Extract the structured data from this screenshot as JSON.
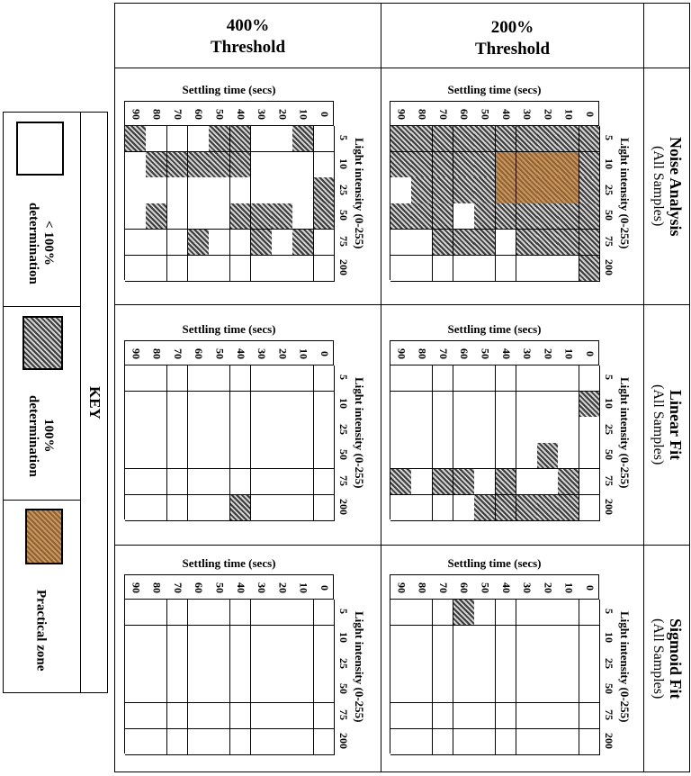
{
  "columns": [
    {
      "line1": "400%",
      "line2": "Threshold"
    },
    {
      "line1": "200%",
      "line2": "Threshold"
    }
  ],
  "rows": [
    {
      "title": "Noise Analysis",
      "subtitle": "(All Samples)"
    },
    {
      "title": "Linear Fit",
      "subtitle": "(All Samples)"
    },
    {
      "title": "Sigmoid Fit",
      "subtitle": "(All Samples)"
    }
  ],
  "axis": {
    "x_title": "Settling time (secs)",
    "y_title": "Light intensity (0-255)",
    "x_ticks": [
      "90",
      "80",
      "70",
      "60",
      "50",
      "40",
      "30",
      "20",
      "10",
      "0"
    ],
    "y_ticks": [
      "5",
      "10",
      "25",
      "50",
      "75",
      "200"
    ]
  },
  "key": {
    "title": "KEY",
    "items": [
      {
        "symbol": "<",
        "label": "100%",
        "label2": "determination",
        "pattern": "blank"
      },
      {
        "symbol": "",
        "label": "100%",
        "label2": "determination",
        "pattern": "hatched"
      },
      {
        "symbol": "",
        "label": "Practical zone",
        "label2": "",
        "pattern": "brown"
      }
    ]
  },
  "chart_data": {
    "type": "heatmap",
    "legend": {
      "0": "< 100% determination",
      "1": "100% determination",
      "2": "Practical zone"
    },
    "x_label": "Settling time (secs)",
    "y_label": "Light intensity (0-255)",
    "x": [
      90,
      80,
      70,
      60,
      50,
      40,
      30,
      20,
      10,
      0
    ],
    "y": [
      5,
      10,
      25,
      50,
      75,
      200
    ],
    "panels": [
      {
        "row": "Noise Analysis",
        "column": "400% Threshold",
        "values": [
          [
            1,
            0,
            0,
            0,
            1,
            1,
            0,
            0,
            1,
            0
          ],
          [
            0,
            1,
            1,
            1,
            1,
            1,
            0,
            0,
            0,
            0
          ],
          [
            0,
            0,
            0,
            0,
            0,
            0,
            0,
            0,
            0,
            1
          ],
          [
            0,
            1,
            0,
            0,
            0,
            1,
            1,
            1,
            0,
            1
          ],
          [
            0,
            0,
            0,
            1,
            0,
            0,
            1,
            0,
            1,
            0
          ],
          [
            0,
            0,
            0,
            0,
            0,
            0,
            0,
            0,
            0,
            0
          ]
        ]
      },
      {
        "row": "Noise Analysis",
        "column": "200% Threshold",
        "values": [
          [
            1,
            1,
            1,
            1,
            1,
            1,
            1,
            1,
            1,
            1
          ],
          [
            1,
            1,
            1,
            1,
            1,
            2,
            2,
            2,
            2,
            1
          ],
          [
            0,
            1,
            1,
            1,
            1,
            2,
            2,
            2,
            2,
            1
          ],
          [
            1,
            1,
            1,
            0,
            1,
            1,
            1,
            1,
            1,
            1
          ],
          [
            0,
            0,
            1,
            1,
            1,
            0,
            1,
            1,
            1,
            1
          ],
          [
            0,
            0,
            0,
            0,
            0,
            0,
            0,
            0,
            0,
            1
          ]
        ]
      },
      {
        "row": "Linear Fit",
        "column": "400% Threshold",
        "values": [
          [
            0,
            0,
            0,
            0,
            0,
            0,
            0,
            0,
            0,
            0
          ],
          [
            0,
            0,
            0,
            0,
            0,
            0,
            0,
            0,
            0,
            0
          ],
          [
            0,
            0,
            0,
            0,
            0,
            0,
            0,
            0,
            0,
            0
          ],
          [
            0,
            0,
            0,
            0,
            0,
            0,
            0,
            0,
            0,
            0
          ],
          [
            0,
            0,
            0,
            0,
            0,
            0,
            0,
            0,
            0,
            0
          ],
          [
            0,
            0,
            0,
            0,
            0,
            1,
            0,
            0,
            0,
            0
          ]
        ]
      },
      {
        "row": "Linear Fit",
        "column": "200% Threshold",
        "values": [
          [
            0,
            0,
            0,
            0,
            0,
            0,
            0,
            0,
            0,
            0
          ],
          [
            0,
            0,
            0,
            0,
            0,
            0,
            0,
            0,
            0,
            1
          ],
          [
            0,
            0,
            0,
            0,
            0,
            0,
            0,
            0,
            0,
            0
          ],
          [
            0,
            0,
            0,
            0,
            0,
            0,
            0,
            1,
            0,
            0
          ],
          [
            1,
            0,
            1,
            1,
            0,
            1,
            0,
            0,
            1,
            0
          ],
          [
            0,
            0,
            0,
            0,
            1,
            1,
            1,
            1,
            1,
            0
          ]
        ]
      },
      {
        "row": "Sigmoid Fit",
        "column": "400% Threshold",
        "values": [
          [
            0,
            0,
            0,
            0,
            0,
            0,
            0,
            0,
            0,
            0
          ],
          [
            0,
            0,
            0,
            0,
            0,
            0,
            0,
            0,
            0,
            0
          ],
          [
            0,
            0,
            0,
            0,
            0,
            0,
            0,
            0,
            0,
            0
          ],
          [
            0,
            0,
            0,
            0,
            0,
            0,
            0,
            0,
            0,
            0
          ],
          [
            0,
            0,
            0,
            0,
            0,
            0,
            0,
            0,
            0,
            0
          ],
          [
            0,
            0,
            0,
            0,
            0,
            0,
            0,
            0,
            0,
            0
          ]
        ]
      },
      {
        "row": "Sigmoid Fit",
        "column": "200% Threshold",
        "values": [
          [
            0,
            0,
            0,
            1,
            0,
            0,
            0,
            0,
            0,
            0
          ],
          [
            0,
            0,
            0,
            0,
            0,
            0,
            0,
            0,
            0,
            0
          ],
          [
            0,
            0,
            0,
            0,
            0,
            0,
            0,
            0,
            0,
            0
          ],
          [
            0,
            0,
            0,
            0,
            0,
            0,
            0,
            0,
            0,
            0
          ],
          [
            0,
            0,
            0,
            0,
            0,
            0,
            0,
            0,
            0,
            0
          ],
          [
            0,
            0,
            0,
            0,
            0,
            0,
            0,
            0,
            0,
            0
          ]
        ]
      }
    ]
  }
}
